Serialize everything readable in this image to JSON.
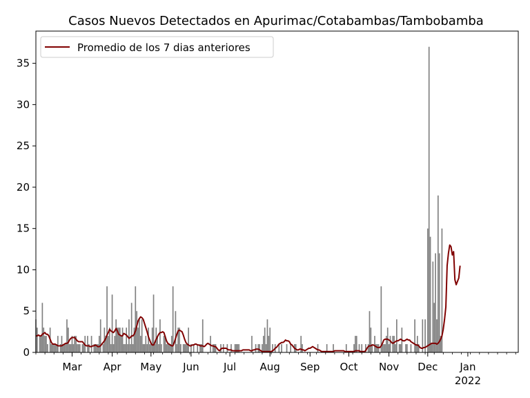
{
  "chart_data": {
    "type": "bar",
    "title": "Casos Nuevos Detectados en Apurimac/Cotabambas/Tambobamba",
    "xlabel": "",
    "ylabel": "",
    "ylim": [
      0,
      38.9
    ],
    "yticks": [
      0,
      5,
      10,
      15,
      20,
      25,
      30,
      35
    ],
    "x_start": "2021-02-01",
    "x_end": "2022-02-09",
    "month_ticks": [
      {
        "date": "2021-03-01",
        "label": "Mar",
        "sublabel": ""
      },
      {
        "date": "2021-04-01",
        "label": "Apr",
        "sublabel": ""
      },
      {
        "date": "2021-05-01",
        "label": "May",
        "sublabel": ""
      },
      {
        "date": "2021-06-01",
        "label": "Jun",
        "sublabel": ""
      },
      {
        "date": "2021-07-01",
        "label": "Jul",
        "sublabel": ""
      },
      {
        "date": "2021-08-01",
        "label": "Aug",
        "sublabel": ""
      },
      {
        "date": "2021-09-01",
        "label": "Sep",
        "sublabel": ""
      },
      {
        "date": "2021-10-01",
        "label": "Oct",
        "sublabel": ""
      },
      {
        "date": "2021-11-01",
        "label": "Nov",
        "sublabel": ""
      },
      {
        "date": "2021-12-01",
        "label": "Dec",
        "sublabel": ""
      },
      {
        "date": "2022-01-01",
        "label": "Jan",
        "sublabel": "2022"
      }
    ],
    "legend": {
      "label": "Promedio de los 7 dias anteriores",
      "placement": "upper-left"
    },
    "grid": false,
    "colors": {
      "bars": "#808080",
      "line": "#800000",
      "axes": "#000000"
    },
    "series": [
      {
        "kind": "bar",
        "values": [
          4,
          3,
          0,
          2,
          2,
          6,
          3,
          2,
          2,
          1,
          0,
          3,
          1,
          1,
          1,
          1,
          1,
          2,
          0,
          1,
          2,
          1,
          1,
          1,
          4,
          3,
          1,
          1,
          2,
          1,
          2,
          2,
          1,
          1,
          1,
          0,
          1,
          1,
          2,
          0,
          2,
          1,
          0,
          2,
          0,
          1,
          1,
          1,
          1,
          2,
          4,
          0,
          1,
          3,
          2,
          8,
          2,
          3,
          1,
          7,
          1,
          2,
          4,
          3,
          3,
          3,
          2,
          3,
          1,
          1,
          3,
          1,
          4,
          1,
          6,
          1,
          3,
          8,
          5,
          3,
          4,
          2,
          4,
          1,
          1,
          2,
          1,
          3,
          1,
          1,
          3,
          7,
          1,
          3,
          2,
          1,
          4,
          1,
          0,
          2,
          2,
          1,
          1,
          1,
          1,
          2,
          8,
          0,
          5,
          1,
          3,
          3,
          1,
          0,
          1,
          1,
          1,
          1,
          3,
          0,
          1,
          0,
          1,
          0,
          0,
          1,
          0,
          1,
          1,
          4,
          0,
          0,
          0,
          0,
          0,
          2,
          0,
          1,
          1,
          1,
          0,
          0,
          0,
          1,
          0,
          1,
          0,
          0,
          1,
          0,
          0,
          1,
          0,
          0,
          1,
          1,
          1,
          1,
          0,
          0,
          0,
          0,
          0,
          0,
          0,
          0,
          0,
          2,
          0,
          0,
          1,
          0,
          1,
          1,
          0,
          1,
          2,
          3,
          1,
          4,
          2,
          3,
          0,
          1,
          0,
          1,
          0,
          0,
          1,
          0,
          1,
          0,
          0,
          0,
          1,
          0,
          0,
          1,
          0,
          0,
          1,
          1,
          0,
          0,
          0,
          2,
          1,
          0,
          0,
          0,
          0,
          0,
          0,
          0,
          0,
          0,
          0,
          0,
          1,
          0,
          0,
          0,
          0,
          0,
          0,
          1,
          0,
          0,
          0,
          0,
          1,
          0,
          0,
          0,
          0,
          0,
          0,
          0,
          0,
          0,
          1,
          0,
          0,
          0,
          0,
          0,
          1,
          2,
          2,
          0,
          1,
          0,
          1,
          0,
          0,
          1,
          0,
          1,
          5,
          3,
          1,
          0,
          2,
          1,
          1,
          1,
          0,
          8,
          1,
          1,
          1,
          2,
          3,
          1,
          2,
          0,
          2,
          2,
          1,
          4,
          0,
          1,
          1,
          3,
          0,
          0,
          1,
          1,
          0,
          0,
          1,
          0,
          0,
          4,
          1,
          2,
          1,
          0,
          0,
          4,
          0,
          4,
          0,
          15,
          37,
          14,
          1,
          11,
          6,
          12,
          4,
          19,
          12,
          2,
          15
        ]
      },
      {
        "kind": "line",
        "name": "Promedio de los 7 dias anteriores",
        "values": [
          2.0,
          2.0,
          2.1,
          2.0,
          2.0,
          2.2,
          2.3,
          2.4,
          2.2,
          2.2,
          2.0,
          1.6,
          1.2,
          1.0,
          1.0,
          1.0,
          0.9,
          0.8,
          0.8,
          0.8,
          0.8,
          0.9,
          1.0,
          1.1,
          1.1,
          1.2,
          1.5,
          1.7,
          1.8,
          1.8,
          1.8,
          1.6,
          1.4,
          1.3,
          1.3,
          1.3,
          1.3,
          1.1,
          0.9,
          0.8,
          0.8,
          0.8,
          0.7,
          0.7,
          0.8,
          0.8,
          0.9,
          0.8,
          0.7,
          0.7,
          0.8,
          1.0,
          1.2,
          1.4,
          1.7,
          2.1,
          2.4,
          2.8,
          2.6,
          2.5,
          2.4,
          2.6,
          2.9,
          2.6,
          2.2,
          2.1,
          2.0,
          2.0,
          2.3,
          2.2,
          2.1,
          1.9,
          1.7,
          1.8,
          2.0,
          2.0,
          2.2,
          2.6,
          3.2,
          3.8,
          4.1,
          4.3,
          4.2,
          4.0,
          3.5,
          3.0,
          2.5,
          1.9,
          1.5,
          1.1,
          0.9,
          0.9,
          1.2,
          1.6,
          1.9,
          2.2,
          2.4,
          2.4,
          2.5,
          2.4,
          1.9,
          1.4,
          1.1,
          1.0,
          0.9,
          0.8,
          0.8,
          1.2,
          1.7,
          2.2,
          2.6,
          2.7,
          2.6,
          2.5,
          2.1,
          1.6,
          1.2,
          1.0,
          0.9,
          0.8,
          0.8,
          0.9,
          0.9,
          1.0,
          1.0,
          0.9,
          0.9,
          0.8,
          0.8,
          0.8,
          0.7,
          0.8,
          1.0,
          1.1,
          1.0,
          0.9,
          0.8,
          0.8,
          0.7,
          0.7,
          0.5,
          0.3,
          0.2,
          0.4,
          0.5,
          0.5,
          0.5,
          0.5,
          0.4,
          0.3,
          0.3,
          0.3,
          0.2,
          0.2,
          0.2,
          0.2,
          0.2,
          0.2,
          0.2,
          0.2,
          0.3,
          0.3,
          0.3,
          0.3,
          0.3,
          0.3,
          0.2,
          0.2,
          0.3,
          0.3,
          0.4,
          0.4,
          0.4,
          0.3,
          0.2,
          0.1,
          0.1,
          0.1,
          0.1,
          0.1,
          0.1,
          0.1,
          0.1,
          0.2,
          0.3,
          0.5,
          0.6,
          0.8,
          1.0,
          1.1,
          1.2,
          1.2,
          1.3,
          1.5,
          1.4,
          1.4,
          1.3,
          1.0,
          0.9,
          0.7,
          0.5,
          0.4,
          0.3,
          0.3,
          0.4,
          0.4,
          0.3,
          0.3,
          0.2,
          0.3,
          0.4,
          0.5,
          0.5,
          0.6,
          0.7,
          0.6,
          0.5,
          0.4,
          0.3,
          0.3,
          0.2,
          0.1,
          0.1,
          0.1,
          0.1,
          0.1,
          0.1,
          0.1,
          0.1,
          0.1,
          0.1,
          0.2,
          0.2,
          0.2,
          0.2,
          0.2,
          0.2,
          0.2,
          0.2,
          0.1,
          0.1,
          0.1,
          0.1,
          0.1,
          0.1,
          0.1,
          0.1,
          0.2,
          0.2,
          0.2,
          0.2,
          0.1,
          0.1,
          0.1,
          0.1,
          0.2,
          0.5,
          0.7,
          0.8,
          0.8,
          0.9,
          0.9,
          0.8,
          0.7,
          0.6,
          0.6,
          0.6,
          0.8,
          1.1,
          1.5,
          1.6,
          1.6,
          1.6,
          1.5,
          1.4,
          1.2,
          1.1,
          1.2,
          1.3,
          1.4,
          1.4,
          1.5,
          1.6,
          1.5,
          1.4,
          1.4,
          1.5,
          1.6,
          1.5,
          1.5,
          1.3,
          1.2,
          1.1,
          1.0,
          0.9,
          0.9,
          0.8,
          0.6,
          0.5,
          0.5,
          0.6,
          0.6,
          0.7,
          0.8,
          0.9,
          1.0,
          1.1,
          1.1,
          1.1,
          1.1,
          1.0,
          1.1,
          1.3,
          1.6,
          2.0,
          2.8,
          4.0,
          5.5,
          10.5,
          12.0,
          13.0,
          12.8,
          11.8,
          12.2,
          8.8,
          8.2,
          8.6,
          9.0,
          10.5
        ]
      }
    ]
  }
}
